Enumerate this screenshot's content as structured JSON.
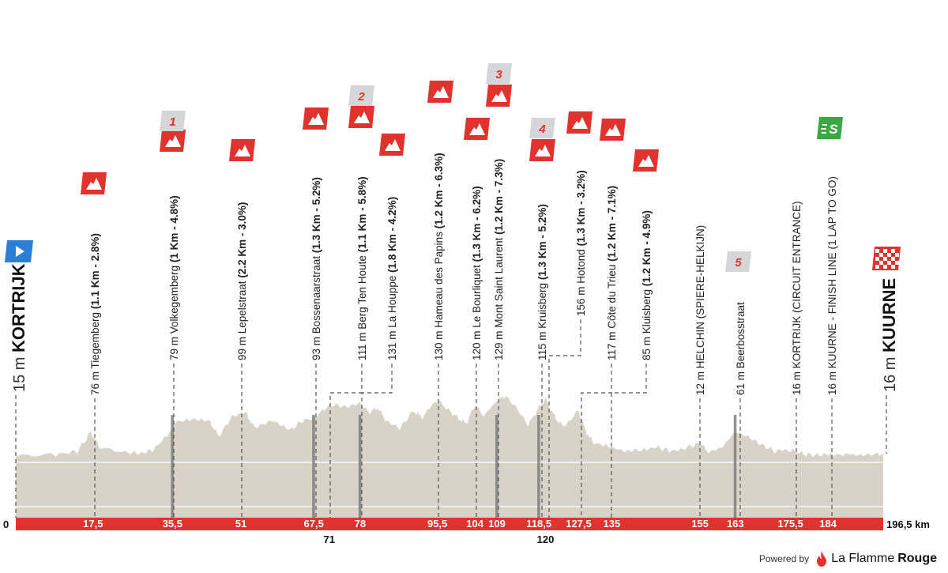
{
  "chart_data": {
    "type": "area",
    "x_unit": "km",
    "xlim": [
      0,
      196.5
    ],
    "start": {
      "name": "KORTRIJK",
      "altitude": "15 m"
    },
    "finish": {
      "name": "KUURNE",
      "altitude": "16 m"
    },
    "axis_zero_label": "0",
    "axis_end_label": "196,5 km",
    "km_ticks": [
      {
        "km": 17.5,
        "label": "17,5"
      },
      {
        "km": 35.5,
        "label": "35,5"
      },
      {
        "km": 51,
        "label": "51"
      },
      {
        "km": 67.5,
        "label": "67,5"
      },
      {
        "km": 78,
        "label": "78"
      },
      {
        "km": 95.5,
        "label": "95,5"
      },
      {
        "km": 104,
        "label": "104"
      },
      {
        "km": 109,
        "label": "109"
      },
      {
        "km": 118.5,
        "label": "118,5"
      },
      {
        "km": 127.5,
        "label": "127,5"
      },
      {
        "km": 135,
        "label": "135"
      },
      {
        "km": 155,
        "label": "155"
      },
      {
        "km": 163,
        "label": "163"
      },
      {
        "km": 175.5,
        "label": "175,5"
      },
      {
        "km": 184,
        "label": "184"
      }
    ],
    "km_ticks_below": [
      {
        "km": 71,
        "label": "71"
      },
      {
        "km": 120,
        "label": "120"
      }
    ],
    "points_of_interest": [
      {
        "km": 17.5,
        "alt": "76 m",
        "name": "Tiegemberg",
        "detail": "(1.1 Km - 2.8%)",
        "type": "climb"
      },
      {
        "km": 35.5,
        "alt": "79 m",
        "name": "Volkegemberg",
        "detail": "(1 Km - 4.8%)",
        "type": "climb",
        "cobble": "1"
      },
      {
        "km": 51,
        "alt": "99 m",
        "name": "Lepelstraat",
        "detail": "(2.2 Km - 3.0%)",
        "type": "climb"
      },
      {
        "km": 67.5,
        "alt": "93 m",
        "name": "Bossenaarstraat",
        "detail": "(1.3 Km - 5.2%)",
        "type": "climb"
      },
      {
        "km": 78,
        "alt": "111 m",
        "name": "Berg Ten Houte",
        "detail": "(1.1 Km - 5.8%)",
        "type": "climb",
        "cobble": "2"
      },
      {
        "km": 78,
        "alt": "131 m",
        "name": "La Houppe",
        "detail": "(1.8 Km - 4.2%)",
        "type": "climb"
      },
      {
        "km": 95.5,
        "alt": "130 m",
        "name": "Hameau des Papins",
        "detail": "(1.2 Km - 6.3%)",
        "type": "climb"
      },
      {
        "km": 104,
        "alt": "120 m",
        "name": "Le Bourliquet",
        "detail": "(1.3 Km - 6.2%)",
        "type": "climb"
      },
      {
        "km": 109,
        "alt": "129 m",
        "name": "Mont Saint Laurent",
        "detail": "(1.2 Km - 7.3%)",
        "type": "climb",
        "cobble": "3"
      },
      {
        "km": 118.5,
        "alt": "115 m",
        "name": "Kruisberg",
        "detail": "(1.3 Km - 5.2%)",
        "type": "climb",
        "cobble": "4"
      },
      {
        "km": 120,
        "alt": "156 m",
        "name": "Hotond",
        "detail": "(1.3 Km - 3.2%)",
        "type": "climb"
      },
      {
        "km": 127.5,
        "alt": "117 m",
        "name": "Côte du Trieu",
        "detail": "(1.2 Km - 7.1%)",
        "type": "climb"
      },
      {
        "km": 135,
        "alt": "85 m",
        "name": "Kluisberg",
        "detail": "(1.2 Km - 4.9%)",
        "type": "climb"
      },
      {
        "km": 155,
        "alt": "12 m",
        "name": "HELCHIN (SPIERE-HELKIJN)",
        "detail": "",
        "type": "town"
      },
      {
        "km": 163,
        "alt": "61 m",
        "name": "Beerbosstraat",
        "detail": "",
        "type": "cobble",
        "cobble": "5"
      },
      {
        "km": 175.5,
        "alt": "16 m",
        "name": "KORTRIJK (CIRCUIT ENTRANCE)",
        "detail": "",
        "type": "town"
      },
      {
        "km": 184,
        "alt": "16 m",
        "name": "KUURNE - FINISH LINE (1 LAP TO GO)",
        "detail": "",
        "type": "sprint",
        "sprint": "S"
      }
    ],
    "colors": {
      "terrain": "#d9d3c7",
      "axis_band": "#e1322d",
      "climb_flag": "#e1322d",
      "cobble_badge": "#d6d6d9",
      "sprint": "#3aa845",
      "start_marker": "#2a7fd4"
    }
  },
  "footer": {
    "powered_by": "Powered by",
    "brand_a": "La Flamme",
    "brand_b": "Rouge"
  }
}
